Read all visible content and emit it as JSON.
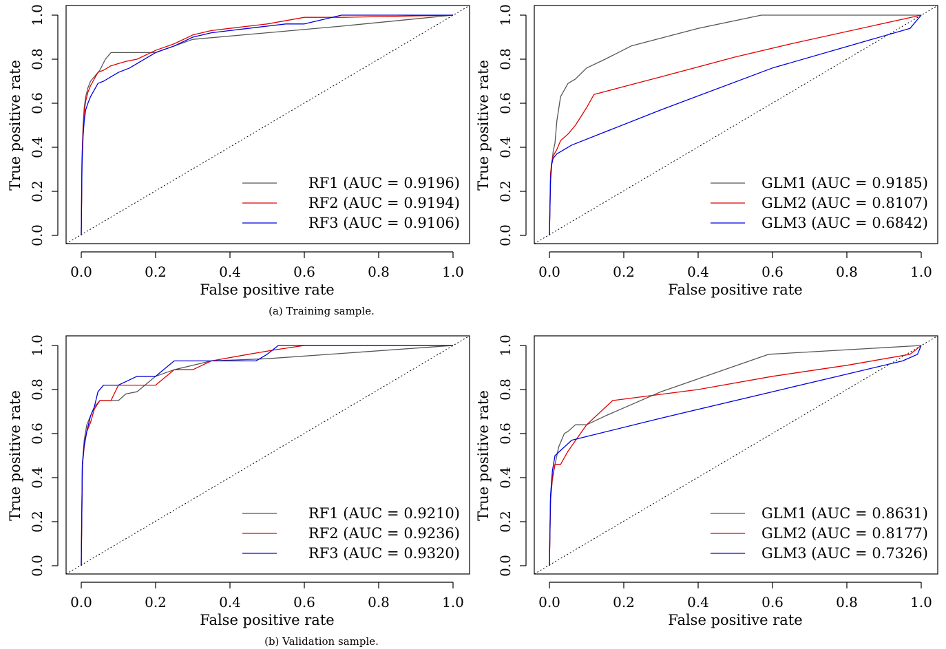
{
  "captions": [
    "(a) Training sample.",
    "(b) Validation sample."
  ],
  "chart_data": [
    {
      "type": "line",
      "xlabel": "False positive rate",
      "ylabel": "True positive rate",
      "xlim": [
        0,
        1
      ],
      "ylim": [
        0,
        1
      ],
      "xticks": [
        "0.0",
        "0.2",
        "0.4",
        "0.6",
        "0.8",
        "1.0"
      ],
      "yticks": [
        "0.0",
        "0.2",
        "0.4",
        "0.6",
        "0.8",
        "1.0"
      ],
      "grid": false,
      "legend_position": "bottom-right",
      "reference_line": "diagonal dotted",
      "series": [
        {
          "name": "RF1 (AUC = 0.9196)",
          "color": "#555555",
          "x": [
            0,
            0.002,
            0.005,
            0.008,
            0.012,
            0.018,
            0.025,
            0.035,
            0.05,
            0.065,
            0.08,
            0.1,
            0.2,
            0.3,
            0.5,
            0.7,
            1.0
          ],
          "y": [
            0,
            0.35,
            0.5,
            0.58,
            0.63,
            0.67,
            0.7,
            0.72,
            0.75,
            0.8,
            0.83,
            0.83,
            0.83,
            0.89,
            0.92,
            0.95,
            1.0
          ]
        },
        {
          "name": "RF2 (AUC = 0.9194)",
          "color": "#e00000",
          "x": [
            0,
            0.002,
            0.005,
            0.008,
            0.012,
            0.018,
            0.025,
            0.035,
            0.045,
            0.06,
            0.08,
            0.1,
            0.12,
            0.15,
            0.2,
            0.25,
            0.3,
            0.35,
            0.4,
            0.5,
            0.6,
            0.7,
            1.0
          ],
          "y": [
            0,
            0.35,
            0.48,
            0.56,
            0.61,
            0.65,
            0.68,
            0.71,
            0.74,
            0.75,
            0.77,
            0.78,
            0.79,
            0.8,
            0.84,
            0.87,
            0.91,
            0.93,
            0.94,
            0.96,
            0.99,
            0.99,
            1.0
          ]
        },
        {
          "name": "RF3 (AUC = 0.9106)",
          "color": "#0000e0",
          "x": [
            0,
            0.002,
            0.005,
            0.008,
            0.012,
            0.018,
            0.025,
            0.035,
            0.045,
            0.06,
            0.08,
            0.1,
            0.13,
            0.16,
            0.2,
            0.25,
            0.3,
            0.35,
            0.4,
            0.45,
            0.5,
            0.55,
            0.6,
            0.65,
            0.7,
            1.0
          ],
          "y": [
            0,
            0.32,
            0.45,
            0.52,
            0.57,
            0.6,
            0.63,
            0.66,
            0.69,
            0.7,
            0.72,
            0.74,
            0.76,
            0.79,
            0.83,
            0.86,
            0.9,
            0.92,
            0.93,
            0.94,
            0.95,
            0.96,
            0.96,
            0.98,
            1.0,
            1.0
          ]
        }
      ]
    },
    {
      "type": "line",
      "xlabel": "False positive rate",
      "ylabel": "True positive rate",
      "xlim": [
        0,
        1
      ],
      "ylim": [
        0,
        1
      ],
      "xticks": [
        "0.0",
        "0.2",
        "0.4",
        "0.6",
        "0.8",
        "1.0"
      ],
      "yticks": [
        "0.0",
        "0.2",
        "0.4",
        "0.6",
        "0.8",
        "1.0"
      ],
      "grid": false,
      "legend_position": "bottom-right",
      "reference_line": "diagonal dotted",
      "series": [
        {
          "name": "GLM1 (AUC = 0.9185)",
          "color": "#555555",
          "x": [
            0,
            0.003,
            0.006,
            0.01,
            0.015,
            0.02,
            0.03,
            0.04,
            0.05,
            0.07,
            0.1,
            0.15,
            0.22,
            0.4,
            0.57,
            1.0
          ],
          "y": [
            0,
            0.25,
            0.32,
            0.38,
            0.42,
            0.52,
            0.63,
            0.66,
            0.69,
            0.71,
            0.76,
            0.8,
            0.86,
            0.94,
            1.0,
            1.0
          ]
        },
        {
          "name": "GLM2 (AUC = 0.8107)",
          "color": "#e00000",
          "x": [
            0,
            0.003,
            0.006,
            0.01,
            0.02,
            0.03,
            0.05,
            0.07,
            0.1,
            0.12,
            0.3,
            0.5,
            0.65,
            1.0
          ],
          "y": [
            0,
            0.28,
            0.33,
            0.36,
            0.39,
            0.43,
            0.46,
            0.5,
            0.58,
            0.64,
            0.72,
            0.81,
            0.87,
            1.0
          ]
        },
        {
          "name": "GLM3 (AUC = 0.6842)",
          "color": "#0000e0",
          "x": [
            0,
            0.003,
            0.006,
            0.01,
            0.02,
            0.06,
            0.3,
            0.6,
            0.97,
            1.0
          ],
          "y": [
            0,
            0.25,
            0.32,
            0.35,
            0.37,
            0.41,
            0.57,
            0.76,
            0.94,
            1.0
          ]
        }
      ]
    },
    {
      "type": "line",
      "xlabel": "False positive rate",
      "ylabel": "True positive rate",
      "xlim": [
        0,
        1
      ],
      "ylim": [
        0,
        1
      ],
      "xticks": [
        "0.0",
        "0.2",
        "0.4",
        "0.6",
        "0.8",
        "1.0"
      ],
      "yticks": [
        "0.0",
        "0.2",
        "0.4",
        "0.6",
        "0.8",
        "1.0"
      ],
      "grid": false,
      "legend_position": "bottom-right",
      "reference_line": "diagonal dotted",
      "series": [
        {
          "name": "RF1 (AUC = 0.9210)",
          "color": "#555555",
          "x": [
            0,
            0.003,
            0.008,
            0.015,
            0.025,
            0.035,
            0.05,
            0.07,
            0.1,
            0.12,
            0.15,
            0.2,
            0.25,
            0.35,
            0.5,
            1.0
          ],
          "y": [
            0,
            0.46,
            0.57,
            0.64,
            0.68,
            0.72,
            0.75,
            0.75,
            0.75,
            0.78,
            0.79,
            0.86,
            0.89,
            0.93,
            0.94,
            1.0
          ]
        },
        {
          "name": "RF2 (AUC = 0.9236)",
          "color": "#e00000",
          "x": [
            0,
            0.003,
            0.008,
            0.015,
            0.025,
            0.035,
            0.05,
            0.08,
            0.1,
            0.12,
            0.2,
            0.25,
            0.3,
            0.35,
            0.45,
            0.52,
            0.6,
            1.0
          ],
          "y": [
            0,
            0.45,
            0.54,
            0.61,
            0.65,
            0.71,
            0.75,
            0.75,
            0.82,
            0.82,
            0.82,
            0.89,
            0.89,
            0.93,
            0.96,
            0.98,
            1.0,
            1.0
          ]
        },
        {
          "name": "RF3 (AUC = 0.9320)",
          "color": "#0000e0",
          "x": [
            0,
            0.003,
            0.008,
            0.015,
            0.025,
            0.035,
            0.045,
            0.06,
            0.1,
            0.15,
            0.2,
            0.25,
            0.3,
            0.35,
            0.4,
            0.47,
            0.5,
            0.53,
            1.0
          ],
          "y": [
            0,
            0.46,
            0.55,
            0.61,
            0.68,
            0.72,
            0.79,
            0.82,
            0.82,
            0.86,
            0.86,
            0.93,
            0.93,
            0.93,
            0.93,
            0.93,
            0.96,
            1.0,
            1.0
          ]
        }
      ]
    },
    {
      "type": "line",
      "xlabel": "False positive rate",
      "ylabel": "True positive rate",
      "xlim": [
        0,
        1
      ],
      "ylim": [
        0,
        1
      ],
      "xticks": [
        "0.0",
        "0.2",
        "0.4",
        "0.6",
        "0.8",
        "1.0"
      ],
      "yticks": [
        "0.0",
        "0.2",
        "0.4",
        "0.6",
        "0.8",
        "1.0"
      ],
      "grid": false,
      "legend_position": "bottom-right",
      "reference_line": "diagonal dotted",
      "series": [
        {
          "name": "GLM1 (AUC = 0.8631)",
          "color": "#555555",
          "x": [
            0,
            0.003,
            0.008,
            0.015,
            0.025,
            0.04,
            0.05,
            0.07,
            0.1,
            0.15,
            0.3,
            0.59,
            1.0
          ],
          "y": [
            0,
            0.3,
            0.39,
            0.46,
            0.54,
            0.6,
            0.61,
            0.64,
            0.64,
            0.68,
            0.79,
            0.96,
            1.0
          ]
        },
        {
          "name": "GLM2 (AUC = 0.8177)",
          "color": "#e00000",
          "x": [
            0,
            0.003,
            0.008,
            0.015,
            0.03,
            0.05,
            0.1,
            0.17,
            0.4,
            0.6,
            0.8,
            0.97,
            1.0
          ],
          "y": [
            0,
            0.3,
            0.4,
            0.46,
            0.46,
            0.52,
            0.64,
            0.75,
            0.8,
            0.86,
            0.91,
            0.96,
            1.0
          ]
        },
        {
          "name": "GLM3 (AUC = 0.7326)",
          "color": "#0000e0",
          "x": [
            0,
            0.003,
            0.008,
            0.015,
            0.06,
            0.3,
            0.6,
            0.8,
            0.95,
            0.99,
            1.0
          ],
          "y": [
            0,
            0.32,
            0.43,
            0.5,
            0.57,
            0.67,
            0.79,
            0.87,
            0.93,
            0.96,
            1.0
          ]
        }
      ]
    }
  ]
}
